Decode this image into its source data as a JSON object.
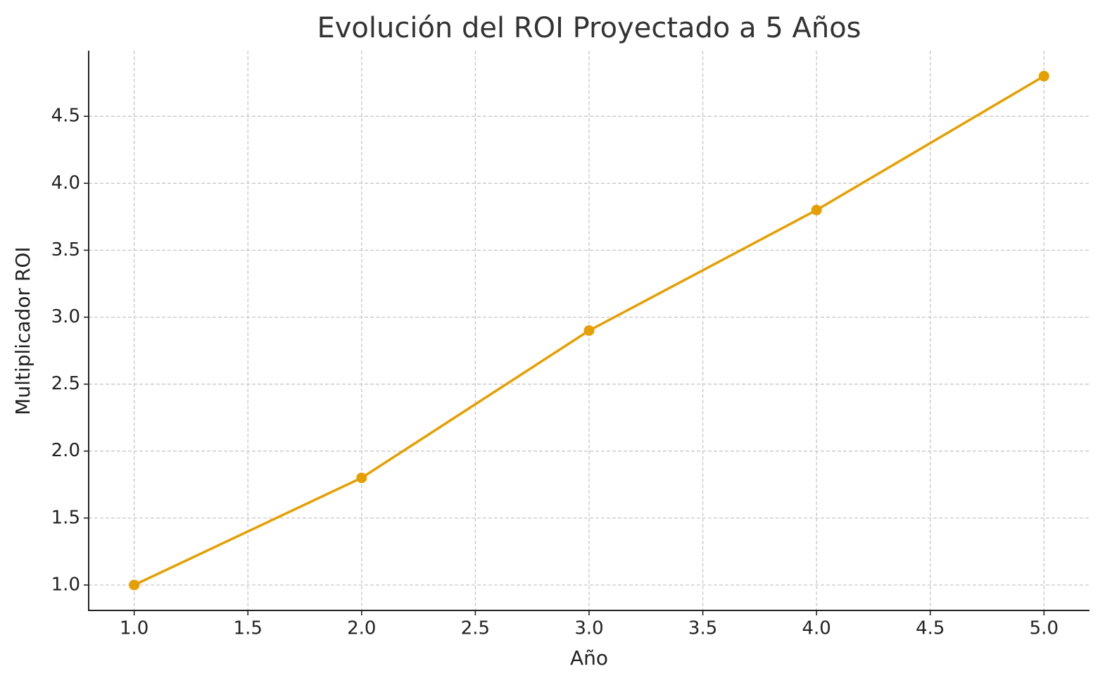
{
  "chart_data": {
    "type": "line",
    "title": "Evolución del ROI Proyectado a 5 Años",
    "x_label": "Año",
    "y_label": "Multiplicador ROI",
    "x": [
      1,
      2,
      3,
      4,
      5
    ],
    "values": [
      1.0,
      1.8,
      2.9,
      3.8,
      4.8
    ],
    "color": "#e69f00",
    "xlim": [
      0.8,
      5.2
    ],
    "ylim": [
      0.81,
      4.99
    ],
    "xticks": [
      {
        "value": 1,
        "label": "1.0"
      },
      {
        "value": 1.5,
        "label": "1.5"
      },
      {
        "value": 2,
        "label": "2.0"
      },
      {
        "value": 2.5,
        "label": "2.5"
      },
      {
        "value": 3,
        "label": "3.0"
      },
      {
        "value": 3.5,
        "label": "3.5"
      },
      {
        "value": 4,
        "label": "4.0"
      },
      {
        "value": 4.5,
        "label": "4.5"
      },
      {
        "value": 5,
        "label": "5.0"
      }
    ],
    "yticks": [
      {
        "value": 1,
        "label": "1.0"
      },
      {
        "value": 1.5,
        "label": "1.5"
      },
      {
        "value": 2,
        "label": "2.0"
      },
      {
        "value": 2.5,
        "label": "2.5"
      },
      {
        "value": 3,
        "label": "3.0"
      },
      {
        "value": 3.5,
        "label": "3.5"
      },
      {
        "value": 4,
        "label": "4.0"
      },
      {
        "value": 4.5,
        "label": "4.5"
      }
    ],
    "grid": true
  }
}
